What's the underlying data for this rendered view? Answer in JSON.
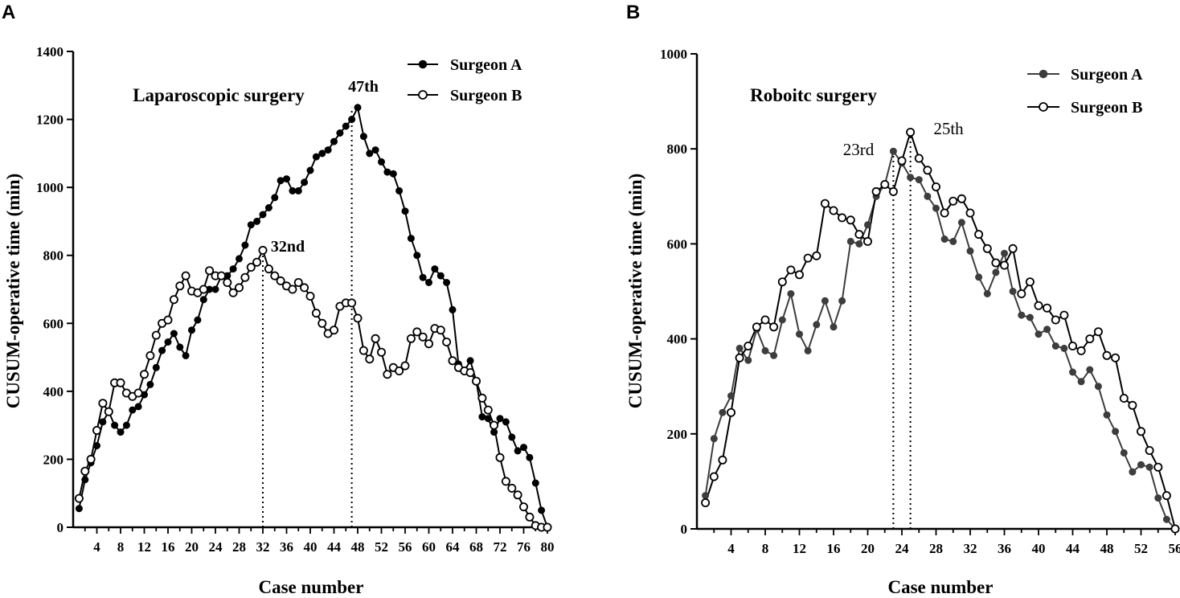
{
  "chart_data": [
    {
      "panel": "A",
      "type": "line",
      "title": "Laparoscopic surgery",
      "xlabel": "Case number",
      "ylabel": "CUSUM-operative time (min)",
      "xlim": [
        0,
        80
      ],
      "ylim": [
        0,
        1400
      ],
      "x_ticks": [
        4,
        8,
        12,
        16,
        20,
        24,
        28,
        32,
        36,
        40,
        44,
        48,
        52,
        56,
        60,
        64,
        68,
        72,
        76,
        80
      ],
      "y_ticks": [
        0,
        200,
        400,
        600,
        800,
        1000,
        1200,
        1400
      ],
      "legend_position": "top-right",
      "series": [
        {
          "name": "Surgeon A",
          "marker": "filled-circle",
          "color": "#000000",
          "x": [
            1,
            2,
            3,
            4,
            5,
            6,
            7,
            8,
            9,
            10,
            11,
            12,
            13,
            14,
            15,
            16,
            17,
            18,
            19,
            20,
            21,
            22,
            23,
            24,
            25,
            26,
            27,
            28,
            29,
            30,
            31,
            32,
            33,
            34,
            35,
            36,
            37,
            38,
            39,
            40,
            41,
            42,
            43,
            44,
            45,
            46,
            47,
            48,
            49,
            50,
            51,
            52,
            53,
            54,
            55,
            56,
            57,
            58,
            59,
            60,
            61,
            62,
            63,
            64,
            65,
            66,
            67,
            68,
            69,
            70,
            71,
            72,
            73,
            74,
            75,
            76,
            77,
            78,
            79,
            80
          ],
          "values": [
            55,
            140,
            190,
            240,
            310,
            340,
            300,
            280,
            300,
            345,
            355,
            390,
            420,
            470,
            520,
            545,
            570,
            530,
            505,
            580,
            610,
            670,
            700,
            700,
            740,
            740,
            760,
            790,
            830,
            890,
            900,
            920,
            940,
            970,
            1020,
            1025,
            990,
            990,
            1015,
            1050,
            1090,
            1100,
            1110,
            1135,
            1160,
            1180,
            1200,
            1235,
            1150,
            1100,
            1110,
            1075,
            1045,
            1040,
            990,
            930,
            850,
            800,
            735,
            720,
            760,
            740,
            720,
            640,
            480,
            460,
            490,
            430,
            325,
            320,
            280,
            320,
            310,
            265,
            225,
            235,
            205,
            130,
            50,
            0
          ]
        },
        {
          "name": "Surgeon B",
          "marker": "open-circle",
          "color": "#000000",
          "x": [
            1,
            2,
            3,
            4,
            5,
            6,
            7,
            8,
            9,
            10,
            11,
            12,
            13,
            14,
            15,
            16,
            17,
            18,
            19,
            20,
            21,
            22,
            23,
            24,
            25,
            26,
            27,
            28,
            29,
            30,
            31,
            32,
            33,
            34,
            35,
            36,
            37,
            38,
            39,
            40,
            41,
            42,
            43,
            44,
            45,
            46,
            47,
            48,
            49,
            50,
            51,
            52,
            53,
            54,
            55,
            56,
            57,
            58,
            59,
            60,
            61,
            62,
            63,
            64,
            65,
            66,
            67,
            68,
            69,
            70,
            71,
            72,
            73,
            74,
            75,
            76,
            77,
            78,
            79,
            80
          ],
          "values": [
            85,
            165,
            200,
            285,
            365,
            340,
            425,
            425,
            395,
            385,
            395,
            450,
            505,
            565,
            600,
            610,
            670,
            710,
            740,
            695,
            690,
            700,
            755,
            740,
            740,
            720,
            690,
            705,
            735,
            765,
            780,
            815,
            760,
            740,
            725,
            710,
            700,
            720,
            705,
            680,
            630,
            600,
            570,
            580,
            650,
            660,
            660,
            615,
            520,
            495,
            555,
            515,
            450,
            470,
            460,
            475,
            555,
            575,
            560,
            540,
            585,
            580,
            545,
            490,
            470,
            460,
            455,
            430,
            380,
            345,
            300,
            205,
            135,
            115,
            95,
            60,
            30,
            5,
            0,
            0
          ]
        }
      ],
      "annotations": [
        {
          "text": "47th",
          "x": 47,
          "y": 1235
        },
        {
          "text": "32nd",
          "x": 32,
          "y": 815
        }
      ]
    },
    {
      "panel": "B",
      "type": "line",
      "title": "Roboitc surgery",
      "xlabel": "Case number",
      "ylabel": "CUSUM-operative time (min)",
      "xlim": [
        0,
        56
      ],
      "ylim": [
        0,
        1000
      ],
      "x_ticks": [
        4,
        8,
        12,
        16,
        20,
        24,
        28,
        32,
        36,
        40,
        44,
        48,
        52,
        56
      ],
      "y_ticks": [
        0,
        200,
        400,
        600,
        800,
        1000
      ],
      "legend_position": "top-right",
      "series": [
        {
          "name": "Surgeon A",
          "marker": "filled-circle",
          "color": "#3d3d3d",
          "x": [
            1,
            2,
            3,
            4,
            5,
            6,
            7,
            8,
            9,
            10,
            11,
            12,
            13,
            14,
            15,
            16,
            17,
            18,
            19,
            20,
            21,
            22,
            23,
            24,
            25,
            26,
            27,
            28,
            29,
            30,
            31,
            32,
            33,
            34,
            35,
            36,
            37,
            38,
            39,
            40,
            41,
            42,
            43,
            44,
            45,
            46,
            47,
            48,
            49,
            50,
            51,
            52,
            53,
            54,
            55,
            56
          ],
          "values": [
            70,
            190,
            245,
            280,
            380,
            355,
            420,
            375,
            365,
            440,
            495,
            410,
            375,
            430,
            480,
            425,
            480,
            605,
            600,
            640,
            700,
            725,
            795,
            770,
            740,
            735,
            700,
            675,
            610,
            605,
            645,
            585,
            530,
            495,
            540,
            580,
            500,
            450,
            445,
            410,
            420,
            385,
            380,
            330,
            310,
            335,
            300,
            240,
            205,
            160,
            120,
            135,
            130,
            65,
            20,
            0
          ]
        },
        {
          "name": "Surgeon B",
          "marker": "open-circle",
          "color": "#000000",
          "x": [
            1,
            2,
            3,
            4,
            5,
            6,
            7,
            8,
            9,
            10,
            11,
            12,
            13,
            14,
            15,
            16,
            17,
            18,
            19,
            20,
            21,
            22,
            23,
            24,
            25,
            26,
            27,
            28,
            29,
            30,
            31,
            32,
            33,
            34,
            35,
            36,
            37,
            38,
            39,
            40,
            41,
            42,
            43,
            44,
            45,
            46,
            47,
            48,
            49,
            50,
            51,
            52,
            53,
            54,
            55,
            56
          ],
          "values": [
            55,
            110,
            145,
            245,
            360,
            385,
            425,
            440,
            425,
            520,
            545,
            535,
            570,
            575,
            685,
            670,
            655,
            650,
            620,
            605,
            710,
            725,
            710,
            775,
            835,
            780,
            755,
            720,
            665,
            690,
            695,
            665,
            620,
            590,
            560,
            555,
            590,
            495,
            520,
            470,
            465,
            440,
            450,
            385,
            375,
            400,
            415,
            365,
            360,
            275,
            260,
            205,
            165,
            130,
            70,
            0
          ]
        }
      ],
      "annotations": [
        {
          "text": "23rd",
          "x": 23,
          "y": 795
        },
        {
          "text": "25th",
          "x": 25,
          "y": 835
        }
      ]
    }
  ]
}
